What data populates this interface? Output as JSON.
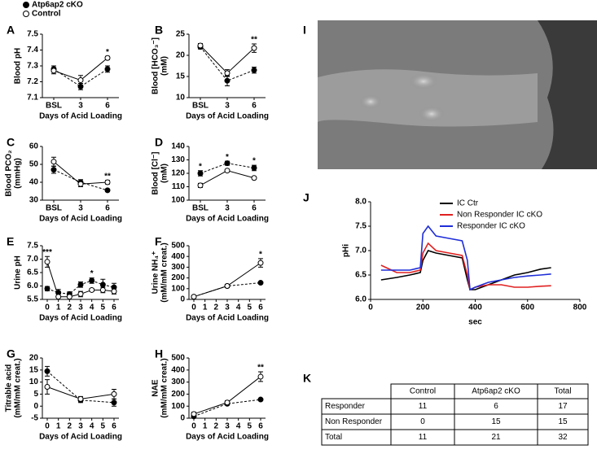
{
  "chart_data": [
    {
      "type": "line",
      "panel": "A",
      "ylabel": [
        "Blood pH"
      ],
      "xlabel": "Days of Acid Loading",
      "categories": [
        "BSL",
        "3",
        "6"
      ],
      "ylim": [
        7.1,
        7.5
      ],
      "yticks": [
        7.1,
        7.2,
        7.3,
        7.4,
        7.5
      ],
      "legend": "top-left",
      "series": [
        {
          "name": "Atp6ap2 cKO",
          "marker": "filled",
          "dashed": true,
          "color": "#000000",
          "values": [
            7.28,
            7.17,
            7.28
          ],
          "errors": [
            0.02,
            0.02,
            0.02
          ]
        },
        {
          "name": "Control",
          "marker": "open",
          "dashed": false,
          "color": "#000000",
          "values": [
            7.27,
            7.21,
            7.35
          ],
          "errors": [
            0.02,
            0.03,
            0.01
          ]
        }
      ],
      "annotations": [
        {
          "x": "6",
          "text": "*"
        }
      ]
    },
    {
      "type": "line",
      "panel": "B",
      "ylabel": [
        "Blood [HCO₃⁻]",
        "(mM)"
      ],
      "xlabel": "Days of Acid Loading",
      "categories": [
        "BSL",
        "3",
        "6"
      ],
      "ylim": [
        10,
        25
      ],
      "yticks": [
        10,
        15,
        20,
        25
      ],
      "series": [
        {
          "marker": "filled",
          "dashed": true,
          "color": "#000000",
          "values": [
            22,
            14,
            16.5
          ],
          "errors": [
            0.5,
            1.2,
            0.7
          ]
        },
        {
          "marker": "open",
          "dashed": false,
          "color": "#000000",
          "values": [
            22.3,
            15.8,
            21.7
          ],
          "errors": [
            0.5,
            0.8,
            1
          ]
        }
      ],
      "annotations": [
        {
          "x": "6",
          "text": "**"
        }
      ]
    },
    {
      "type": "line",
      "panel": "C",
      "ylabel": [
        "Blood PCO₂",
        "(mmHg)"
      ],
      "xlabel": "Days of Acid Loading",
      "categories": [
        "BSL",
        "3",
        "6"
      ],
      "ylim": [
        30,
        60
      ],
      "yticks": [
        30,
        40,
        50,
        60
      ],
      "series": [
        {
          "marker": "filled",
          "dashed": true,
          "color": "#000000",
          "values": [
            47,
            40,
            35.5
          ],
          "errors": [
            2,
            1.5,
            0.7
          ]
        },
        {
          "marker": "open",
          "dashed": false,
          "color": "#000000",
          "values": [
            51.5,
            39,
            40
          ],
          "errors": [
            2.5,
            1.5,
            1
          ]
        }
      ],
      "annotations": [
        {
          "x": "6",
          "text": "**"
        }
      ]
    },
    {
      "type": "line",
      "panel": "D",
      "ylabel": [
        "Blood [Cl⁻]",
        "(mM)"
      ],
      "xlabel": "Days of Acid Loading",
      "categories": [
        "BSL",
        "3",
        "6"
      ],
      "ylim": [
        100,
        140
      ],
      "yticks": [
        100,
        110,
        120,
        130,
        140
      ],
      "series": [
        {
          "marker": "filled",
          "dashed": true,
          "color": "#000000",
          "values": [
            120,
            127.5,
            124
          ],
          "errors": [
            2,
            1.5,
            2
          ]
        },
        {
          "marker": "open",
          "dashed": false,
          "color": "#000000",
          "values": [
            111,
            122,
            116.5
          ],
          "errors": [
            1.5,
            1,
            1
          ]
        }
      ],
      "annotations": [
        {
          "x": "BSL",
          "text": "*"
        },
        {
          "x": "3",
          "text": "*"
        },
        {
          "x": "6",
          "text": "*"
        }
      ]
    },
    {
      "type": "line",
      "panel": "E",
      "ylabel": [
        "Urine pH"
      ],
      "xlabel": "Days of Acid Loading",
      "x": [
        0,
        1,
        2,
        3,
        4,
        5,
        6
      ],
      "xlim": [
        0,
        6
      ],
      "xticks": [
        0,
        1,
        2,
        3,
        4,
        5,
        6
      ],
      "ylim": [
        5.5,
        7.5
      ],
      "yticks": [
        5.5,
        {
          "value": 6,
          "label": "6.0"
        },
        6.5,
        {
          "value": 7,
          "label": "7.0"
        },
        7.5
      ],
      "series": [
        {
          "marker": "filled",
          "dashed": true,
          "color": "#000000",
          "values": [
            5.9,
            5.75,
            5.7,
            6.05,
            6.2,
            6.05,
            5.95
          ],
          "errors": [
            0.08,
            0.12,
            0.08,
            0.1,
            0.1,
            0.2,
            0.15
          ]
        },
        {
          "marker": "open",
          "dashed": false,
          "color": "#000000",
          "values": [
            6.9,
            5.6,
            5.6,
            5.7,
            5.85,
            5.85,
            5.8
          ],
          "errors": [
            0.2,
            0.1,
            0.1,
            0.1,
            0.05,
            0.1,
            0.1
          ]
        }
      ],
      "annotations": [
        {
          "x": 0,
          "text": "***"
        },
        {
          "x": 4,
          "text": "*"
        }
      ]
    },
    {
      "type": "line",
      "panel": "F",
      "ylabel": [
        "Urine NH₄⁺",
        "(mM/mM creat.)"
      ],
      "xlabel": "Days of Acid Loading",
      "x": [
        0,
        3,
        6
      ],
      "xlim": [
        0,
        6
      ],
      "xticks": [
        0,
        1,
        2,
        3,
        4,
        5,
        6
      ],
      "ylim": [
        0,
        500
      ],
      "yticks": [
        0,
        100,
        200,
        300,
        400,
        500
      ],
      "series": [
        {
          "marker": "filled",
          "dashed": true,
          "color": "#000000",
          "values": [
            25,
            125,
            155
          ],
          "errors": [
            5,
            10,
            8
          ]
        },
        {
          "marker": "open",
          "dashed": false,
          "color": "#000000",
          "values": [
            25,
            125,
            340
          ],
          "errors": [
            5,
            15,
            40
          ]
        }
      ],
      "annotations": [
        {
          "x": 6,
          "text": "*"
        }
      ]
    },
    {
      "type": "line",
      "panel": "G",
      "ylabel": [
        "Titrable acid",
        "(mM/mM creat.)"
      ],
      "xlabel": "Days of Acid Loading",
      "x": [
        0,
        3,
        6
      ],
      "xlim": [
        0,
        6
      ],
      "xticks": [
        0,
        1,
        2,
        3,
        4,
        5,
        6
      ],
      "ylim": [
        -5,
        20
      ],
      "yticks": [
        -5,
        0,
        5,
        10,
        15,
        20
      ],
      "series": [
        {
          "marker": "filled",
          "dashed": true,
          "color": "#000000",
          "values": [
            14.5,
            2.5,
            1.5
          ],
          "errors": [
            2,
            1,
            1.5
          ]
        },
        {
          "marker": "open",
          "dashed": false,
          "color": "#000000",
          "values": [
            8,
            3,
            5
          ],
          "errors": [
            3,
            1,
            2
          ]
        }
      ],
      "annotations": []
    },
    {
      "type": "line",
      "panel": "H",
      "ylabel": [
        "NAE",
        "(mM/mM creat.)"
      ],
      "xlabel": "Days of Acid Loading",
      "x": [
        0,
        3,
        6
      ],
      "xlim": [
        0,
        6
      ],
      "xticks": [
        0,
        1,
        2,
        3,
        4,
        5,
        6
      ],
      "ylim": [
        0,
        500
      ],
      "yticks": [
        0,
        100,
        200,
        300,
        400,
        500
      ],
      "series": [
        {
          "marker": "filled",
          "dashed": true,
          "color": "#000000",
          "values": [
            15,
            120,
            155
          ],
          "errors": [
            10,
            10,
            8
          ]
        },
        {
          "marker": "open",
          "dashed": false,
          "color": "#000000",
          "values": [
            35,
            130,
            345
          ],
          "errors": [
            15,
            15,
            40
          ]
        }
      ],
      "annotations": [
        {
          "x": 6,
          "text": "**"
        }
      ]
    },
    {
      "type": "trace",
      "panel": "J",
      "ylabel": [
        "pHi"
      ],
      "xlabel": "sec",
      "legend": "top-right",
      "x": [
        40,
        100,
        150,
        190,
        200,
        220,
        250,
        300,
        350,
        370,
        380,
        400,
        450,
        500,
        550,
        600,
        650,
        690
      ],
      "xlim": [
        0,
        800
      ],
      "xticks": [
        0,
        200,
        400,
        600,
        800
      ],
      "ylim": [
        6,
        8
      ],
      "yticks": [
        {
          "value": 6,
          "label": "6.0"
        },
        6.5,
        {
          "value": 7,
          "label": "7.0"
        },
        7.5,
        {
          "value": 8,
          "label": "8.0"
        }
      ],
      "series": [
        {
          "name": "IC Ctr",
          "color": "#000000",
          "values": [
            6.4,
            6.45,
            6.5,
            6.55,
            6.8,
            7.0,
            6.95,
            6.9,
            6.85,
            6.4,
            6.2,
            6.2,
            6.3,
            6.4,
            6.5,
            6.55,
            6.62,
            6.65
          ]
        },
        {
          "name": "Non Responder IC cKO",
          "color": "#e02020",
          "values": [
            6.7,
            6.55,
            6.55,
            6.6,
            6.95,
            7.15,
            7.0,
            6.95,
            6.9,
            6.5,
            6.2,
            6.25,
            6.3,
            6.3,
            6.25,
            6.25,
            6.27,
            6.28
          ]
        },
        {
          "name": "Responder IC cKO",
          "color": "#1f2ed8",
          "values": [
            6.6,
            6.6,
            6.6,
            6.65,
            7.35,
            7.5,
            7.3,
            7.25,
            7.2,
            6.8,
            6.2,
            6.25,
            6.35,
            6.4,
            6.45,
            6.48,
            6.5,
            6.52
          ]
        }
      ]
    }
  ],
  "image": {
    "panel": "I"
  },
  "table": {
    "panel": "K",
    "columns": [
      "Control",
      "Atp6ap2 cKO",
      "Total"
    ],
    "rows": [
      {
        "label": "Responder",
        "cells": [
          11,
          6,
          17
        ]
      },
      {
        "label": "Non Responder",
        "cells": [
          0,
          15,
          15
        ]
      },
      {
        "label": "Total",
        "cells": [
          11,
          21,
          32
        ]
      }
    ]
  }
}
